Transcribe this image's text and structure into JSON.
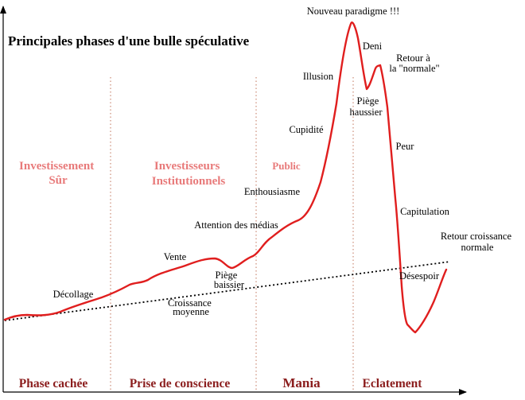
{
  "chart_data": {
    "type": "line",
    "title": "Principales phases d'une bulle spéculative",
    "xlabel": "",
    "ylabel": "",
    "grid": false,
    "legend": "none",
    "colors": {
      "curve": "#e01e1e",
      "trend": "#000000",
      "divider": "#c0735a",
      "phase_mid": "#e87a7a",
      "phase_bottom": "#8b1d1d",
      "axis": "#000000"
    },
    "phases": [
      {
        "bottom_label": "Phase cachée",
        "mid_label": [
          "Investissement",
          "Sûr"
        ]
      },
      {
        "bottom_label": "Prise de conscience",
        "mid_label": [
          "Investisseurs",
          "Institutionnels"
        ]
      },
      {
        "bottom_label": "Mania",
        "mid_label": [
          "Public"
        ]
      },
      {
        "bottom_label": "Eclatement",
        "mid_label": []
      }
    ],
    "annotations": [
      {
        "id": "nouveau-paradigme",
        "lines": [
          "Nouveau paradigme !!!"
        ]
      },
      {
        "id": "deni",
        "lines": [
          "Deni"
        ]
      },
      {
        "id": "retour-normale",
        "lines": [
          "Retour  à",
          "la \"normale\""
        ]
      },
      {
        "id": "illusion",
        "lines": [
          "Illusion"
        ]
      },
      {
        "id": "piege-haussier",
        "lines": [
          "Piège",
          "haussier"
        ]
      },
      {
        "id": "cupidite",
        "lines": [
          "Cupidité"
        ]
      },
      {
        "id": "peur",
        "lines": [
          "Peur"
        ]
      },
      {
        "id": "enthousiasme",
        "lines": [
          "Enthousiasme"
        ]
      },
      {
        "id": "capitulation",
        "lines": [
          "Capitulation"
        ]
      },
      {
        "id": "attention-medias",
        "lines": [
          "Attention des médias"
        ]
      },
      {
        "id": "retour-croissance",
        "lines": [
          "Retour croissance",
          "normale"
        ]
      },
      {
        "id": "vente",
        "lines": [
          "Vente"
        ]
      },
      {
        "id": "piege-baissier",
        "lines": [
          "Piège",
          "baissier"
        ]
      },
      {
        "id": "desespoir",
        "lines": [
          "Désespoir"
        ]
      },
      {
        "id": "decollage",
        "lines": [
          "Décollage"
        ]
      },
      {
        "id": "croissance-moyenne",
        "lines": [
          "Croissance",
          "moyenne"
        ]
      }
    ]
  }
}
